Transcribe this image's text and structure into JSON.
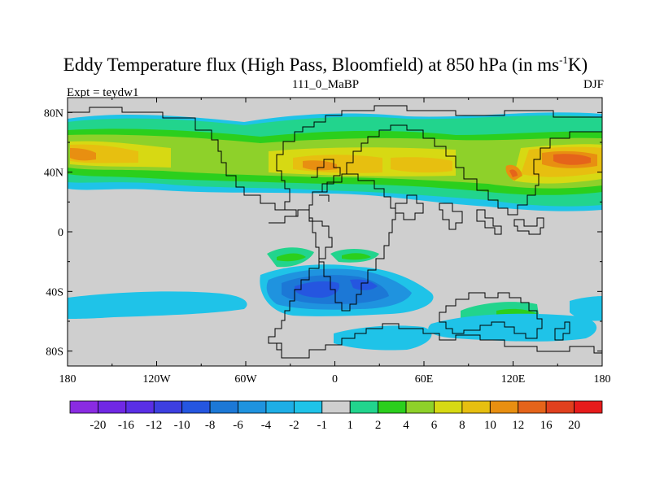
{
  "chart_data": {
    "type": "heatmap",
    "title_main": "Eddy Temperature flux (High Pass, Bloomfield) at 850 hPa (in ms",
    "title_sup": "-1",
    "title_tail": "K)",
    "subtitle_left": "Expt = teydw1",
    "subtitle_center": "111_0_MaBP",
    "subtitle_right": "DJF",
    "x_ticks": [
      "180",
      "120W",
      "60W",
      "0",
      "60E",
      "120E",
      "180"
    ],
    "x_tick_lon": [
      -180,
      -120,
      -60,
      0,
      60,
      120,
      180
    ],
    "y_ticks": [
      "80N",
      "40N",
      "0",
      "40S",
      "80S"
    ],
    "y_tick_lat": [
      80,
      40,
      0,
      -40,
      -80
    ],
    "xlim": [
      -180,
      180
    ],
    "ylim": [
      -90,
      90
    ],
    "colorbar_labels": [
      "-20",
      "-16",
      "-12",
      "-10",
      "-8",
      "-6",
      "-4",
      "-2",
      "-1",
      "1",
      "2",
      "4",
      "6",
      "8",
      "10",
      "12",
      "16",
      "20"
    ],
    "colorbar_colors": [
      "#8a2be2",
      "#7028e4",
      "#5a2fe6",
      "#3d3fe0",
      "#2556e0",
      "#1c78d6",
      "#1f93df",
      "#1eaee6",
      "#1fc3e8",
      "#cfcfcf",
      "#22d48d",
      "#2bcf1d",
      "#8ed12a",
      "#d7d913",
      "#e7bf10",
      "#e88f11",
      "#e5641a",
      "#e0401e",
      "#e71b1b"
    ],
    "land_color": "#cfcfcf"
  }
}
